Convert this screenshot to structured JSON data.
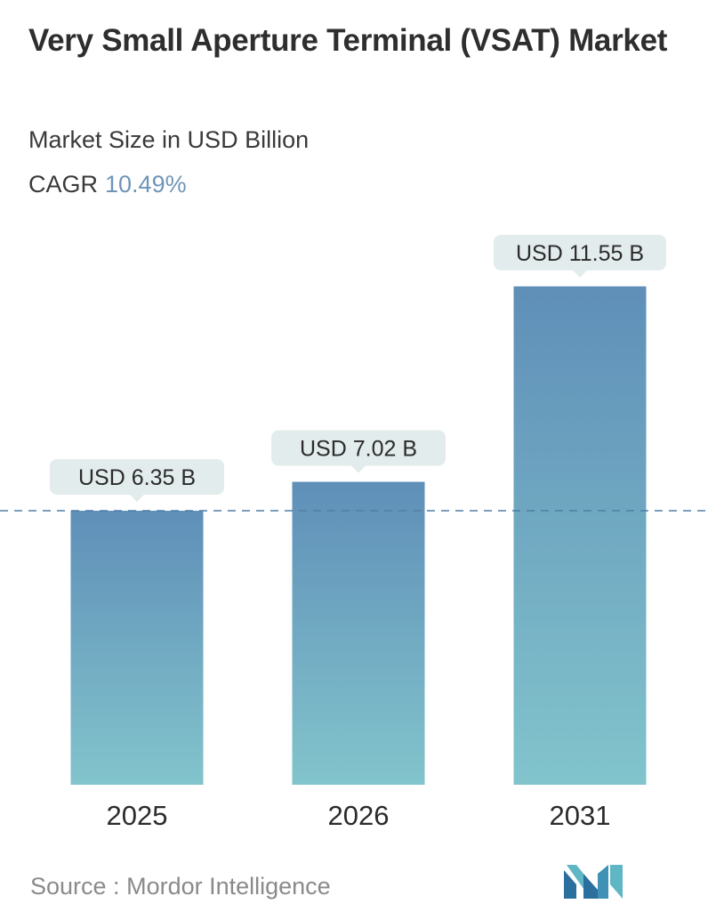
{
  "header": {
    "title": "Very Small Aperture Terminal (VSAT) Market",
    "subtitle": "Market Size in USD Billion",
    "cagr_label": "CAGR",
    "cagr_value": "10.49%"
  },
  "footer": {
    "source_label": "Source :",
    "source_name": "Mordor Intelligence"
  },
  "colors": {
    "bar_top": "#5f8fb8",
    "bar_bottom": "#82c4cc",
    "label_bg": "#e3ecec",
    "dashed_line": "#4f7fa6",
    "cagr_accent": "#6f95b8"
  },
  "chart_data": {
    "type": "bar",
    "categories": [
      "2025",
      "2026",
      "2031"
    ],
    "values": [
      6.35,
      7.02,
      11.55
    ],
    "data_labels": [
      "USD 6.35 B",
      "USD 7.02 B",
      "USD 11.55 B"
    ],
    "title": "Very Small Aperture Terminal (VSAT) Market",
    "subtitle": "Market Size in USD Billion",
    "unit": "USD Billion",
    "reference_line": 6.35,
    "grid": false,
    "legend": "none"
  }
}
